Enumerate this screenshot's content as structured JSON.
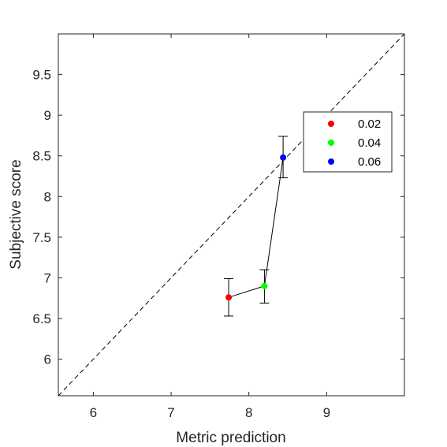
{
  "chart_data": {
    "type": "scatter",
    "xlabel": "Metric prediction",
    "ylabel": "Subjective score",
    "xlim": [
      5.55,
      10.0
    ],
    "ylim": [
      5.55,
      10.0
    ],
    "xticks": [
      6,
      7,
      8,
      9
    ],
    "yticks": [
      6,
      6.5,
      7,
      7.5,
      8,
      8.5,
      9,
      9.5
    ],
    "xtick_labels": [
      "6",
      "7",
      "8",
      "9"
    ],
    "ytick_labels": [
      "6",
      "6.5",
      "7",
      "7.5",
      "8",
      "8.5",
      "9",
      "9.5"
    ],
    "grid": false,
    "reference_line": "y = x (dashed)",
    "connecting_line": true,
    "legend_position": "top-right",
    "series": [
      {
        "name": "0.02",
        "color": "#ff0000",
        "x": 7.74,
        "y": 6.76,
        "y_err_low": 6.53,
        "y_err_high": 6.99
      },
      {
        "name": "0.04",
        "color": "#00ff00",
        "x": 8.2,
        "y": 6.9,
        "y_err_low": 6.69,
        "y_err_high": 7.1
      },
      {
        "name": "0.06",
        "color": "#0000ff",
        "x": 8.44,
        "y": 8.48,
        "y_err_low": 8.23,
        "y_err_high": 8.74
      }
    ]
  }
}
